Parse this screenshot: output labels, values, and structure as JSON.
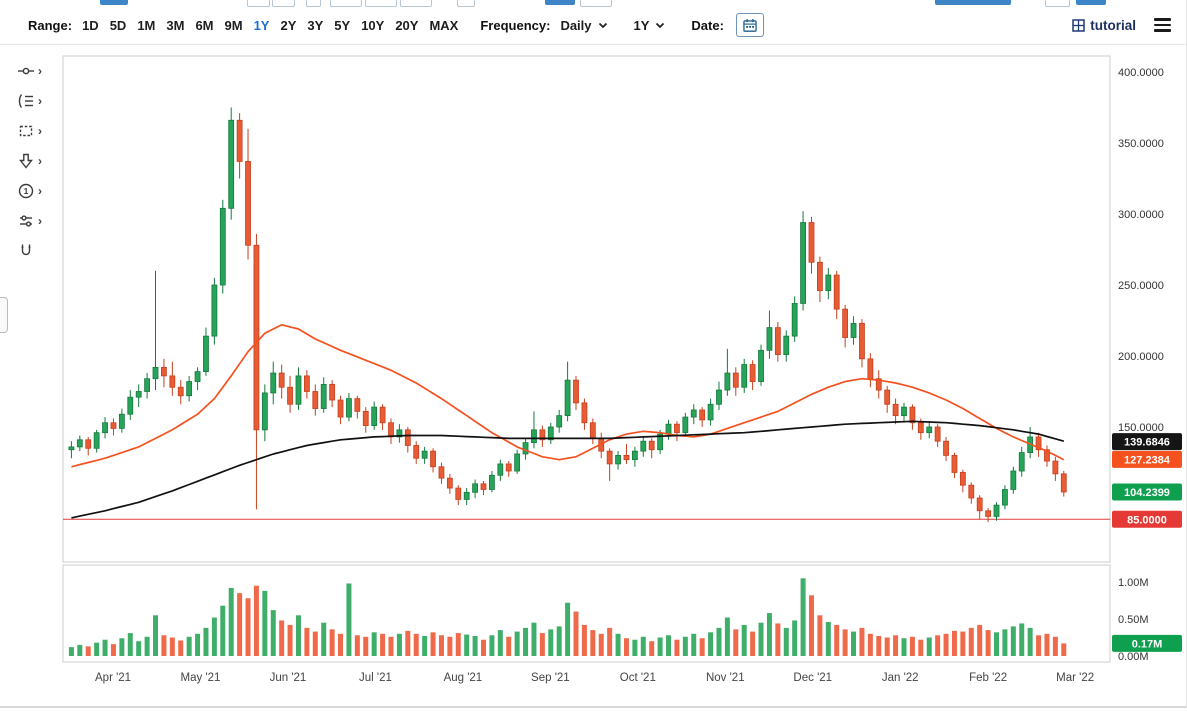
{
  "toolbar": {
    "range_label": "Range:",
    "range_options": [
      "1D",
      "5D",
      "1M",
      "3M",
      "6M",
      "9M",
      "1Y",
      "2Y",
      "3Y",
      "5Y",
      "10Y",
      "20Y",
      "MAX"
    ],
    "active_range": "1Y",
    "frequency_label": "Frequency:",
    "frequency_value": "Daily",
    "period_value": "1Y",
    "date_label": "Date:",
    "calendar_icon": "calendar-icon",
    "tutorial_icon": "grid-icon",
    "tutorial_label": "tutorial",
    "menu_icon": "hamburger-menu-icon",
    "accent_color": "#1a6fd4"
  },
  "tools": [
    {
      "icon": "trendline-tool-icon",
      "chevron": true
    },
    {
      "icon": "pattern-tool-icon",
      "chevron": true
    },
    {
      "icon": "shape-tool-icon",
      "chevron": true
    },
    {
      "icon": "arrow-tool-icon",
      "chevron": true
    },
    {
      "icon": "annotation-counter-tool-icon",
      "chevron": true
    },
    {
      "icon": "indicator-slider-tool-icon",
      "chevron": true
    },
    {
      "icon": "magnet-tool-icon",
      "chevron": false
    }
  ],
  "chart_data": {
    "type": "candlestick",
    "title": "",
    "ylim": [
      56,
      411
    ],
    "grid": false,
    "y_axis_ticks": [
      {
        "label": "400.0000",
        "value": 400
      },
      {
        "label": "350.0000",
        "value": 350
      },
      {
        "label": "300.0000",
        "value": 300
      },
      {
        "label": "250.0000",
        "value": 250
      },
      {
        "label": "200.0000",
        "value": 200
      },
      {
        "label": "150.0000",
        "value": 150
      }
    ],
    "volume_axis_ticks": [
      {
        "label": "1.00M",
        "value": 1.0
      },
      {
        "label": "0.50M",
        "value": 0.5
      },
      {
        "label": "0.00M",
        "value": 0.0
      }
    ],
    "x_axis_months": [
      {
        "label": "Apr '21",
        "i": 4.95
      },
      {
        "label": "May '21",
        "i": 15.35
      },
      {
        "label": "Jun '21",
        "i": 25.75
      },
      {
        "label": "Jul '21",
        "i": 36.15
      },
      {
        "label": "Aug '21",
        "i": 46.55
      },
      {
        "label": "Sep '21",
        "i": 56.95
      },
      {
        "label": "Oct '21",
        "i": 67.35
      },
      {
        "label": "Nov '21",
        "i": 77.75
      },
      {
        "label": "Dec '21",
        "i": 88.15
      },
      {
        "label": "Jan '22",
        "i": 98.55
      },
      {
        "label": "Feb '22",
        "i": 109.0
      },
      {
        "label": "Mar '22",
        "i": 119.35
      }
    ],
    "candles_ohlc": [
      [
        134,
        140,
        128,
        136
      ],
      [
        136,
        144,
        133,
        141
      ],
      [
        141,
        143,
        130,
        135
      ],
      [
        135,
        148,
        132,
        146
      ],
      [
        146,
        157,
        142,
        153
      ],
      [
        153,
        156,
        144,
        149
      ],
      [
        149,
        163,
        146,
        159
      ],
      [
        159,
        176,
        155,
        171
      ],
      [
        171,
        180,
        164,
        175
      ],
      [
        175,
        188,
        170,
        184
      ],
      [
        184,
        260,
        176,
        192
      ],
      [
        192,
        198,
        178,
        186
      ],
      [
        186,
        196,
        172,
        178
      ],
      [
        178,
        183,
        166,
        172
      ],
      [
        172,
        186,
        168,
        182
      ],
      [
        182,
        192,
        176,
        189
      ],
      [
        189,
        220,
        186,
        214
      ],
      [
        214,
        255,
        208,
        250
      ],
      [
        250,
        310,
        244,
        304
      ],
      [
        304,
        375,
        296,
        366
      ],
      [
        366,
        371,
        325,
        337
      ],
      [
        337,
        360,
        268,
        278
      ],
      [
        278,
        286,
        92,
        148
      ],
      [
        148,
        180,
        140,
        174
      ],
      [
        174,
        196,
        166,
        188
      ],
      [
        188,
        194,
        170,
        178
      ],
      [
        178,
        186,
        160,
        166
      ],
      [
        166,
        192,
        162,
        186
      ],
      [
        186,
        190,
        170,
        175
      ],
      [
        175,
        180,
        158,
        163
      ],
      [
        163,
        185,
        160,
        180
      ],
      [
        180,
        183,
        164,
        169
      ],
      [
        169,
        172,
        152,
        157
      ],
      [
        157,
        174,
        154,
        170
      ],
      [
        170,
        172,
        156,
        161
      ],
      [
        161,
        164,
        146,
        151
      ],
      [
        151,
        168,
        148,
        164
      ],
      [
        164,
        166,
        148,
        153
      ],
      [
        153,
        156,
        138,
        143
      ],
      [
        143,
        152,
        139,
        148
      ],
      [
        148,
        150,
        132,
        137
      ],
      [
        137,
        140,
        124,
        128
      ],
      [
        128,
        136,
        124,
        133
      ],
      [
        133,
        135,
        118,
        122
      ],
      [
        122,
        125,
        110,
        114
      ],
      [
        114,
        117,
        103,
        107
      ],
      [
        107,
        109,
        95,
        99
      ],
      [
        99,
        107,
        95,
        104
      ],
      [
        104,
        113,
        100,
        110
      ],
      [
        110,
        112,
        102,
        106
      ],
      [
        106,
        119,
        104,
        116
      ],
      [
        116,
        127,
        112,
        124
      ],
      [
        124,
        126,
        115,
        119
      ],
      [
        119,
        134,
        117,
        131
      ],
      [
        131,
        142,
        127,
        139
      ],
      [
        139,
        161,
        135,
        148
      ],
      [
        148,
        151,
        136,
        141
      ],
      [
        141,
        153,
        138,
        150
      ],
      [
        150,
        162,
        146,
        158
      ],
      [
        158,
        196,
        154,
        183
      ],
      [
        183,
        186,
        162,
        167
      ],
      [
        167,
        170,
        148,
        153
      ],
      [
        153,
        156,
        138,
        142
      ],
      [
        142,
        146,
        128,
        133
      ],
      [
        133,
        135,
        112,
        124
      ],
      [
        124,
        133,
        120,
        130
      ],
      [
        130,
        138,
        124,
        127
      ],
      [
        127,
        136,
        122,
        133
      ],
      [
        133,
        143,
        129,
        140
      ],
      [
        140,
        142,
        128,
        134
      ],
      [
        134,
        148,
        131,
        145
      ],
      [
        145,
        155,
        141,
        152
      ],
      [
        152,
        154,
        140,
        146
      ],
      [
        146,
        160,
        143,
        157
      ],
      [
        157,
        166,
        152,
        162
      ],
      [
        162,
        164,
        150,
        155
      ],
      [
        155,
        170,
        151,
        166
      ],
      [
        166,
        182,
        162,
        176
      ],
      [
        176,
        205,
        172,
        188
      ],
      [
        188,
        192,
        172,
        178
      ],
      [
        178,
        198,
        174,
        194
      ],
      [
        194,
        197,
        176,
        182
      ],
      [
        182,
        208,
        179,
        204
      ],
      [
        204,
        232,
        198,
        220
      ],
      [
        220,
        224,
        196,
        201
      ],
      [
        201,
        218,
        196,
        214
      ],
      [
        214,
        242,
        210,
        237
      ],
      [
        237,
        302,
        232,
        294
      ],
      [
        294,
        298,
        258,
        266
      ],
      [
        266,
        270,
        238,
        246
      ],
      [
        246,
        262,
        240,
        257
      ],
      [
        257,
        260,
        226,
        233
      ],
      [
        233,
        236,
        206,
        213
      ],
      [
        213,
        228,
        208,
        223
      ],
      [
        223,
        226,
        192,
        198
      ],
      [
        198,
        202,
        178,
        184
      ],
      [
        184,
        190,
        170,
        176
      ],
      [
        176,
        179,
        160,
        166
      ],
      [
        166,
        170,
        152,
        158
      ],
      [
        158,
        167,
        154,
        164
      ],
      [
        164,
        166,
        148,
        153
      ],
      [
        153,
        156,
        141,
        146
      ],
      [
        146,
        154,
        142,
        150
      ],
      [
        150,
        152,
        136,
        140
      ],
      [
        140,
        143,
        126,
        130
      ],
      [
        130,
        132,
        114,
        118
      ],
      [
        118,
        120,
        104,
        109
      ],
      [
        109,
        111,
        96,
        100
      ],
      [
        100,
        102,
        85,
        91
      ],
      [
        91,
        93,
        83,
        87
      ],
      [
        87,
        97,
        84,
        95
      ],
      [
        95,
        109,
        92,
        106
      ],
      [
        106,
        122,
        103,
        119
      ],
      [
        119,
        136,
        115,
        132
      ],
      [
        132,
        150,
        128,
        143
      ],
      [
        143,
        146,
        129,
        134
      ],
      [
        134,
        137,
        122,
        126
      ],
      [
        126,
        129,
        112,
        117
      ],
      [
        117,
        119,
        101,
        104.24
      ]
    ],
    "volumes_millions": [
      0.12,
      0.15,
      0.13,
      0.18,
      0.22,
      0.16,
      0.24,
      0.31,
      0.2,
      0.26,
      0.55,
      0.28,
      0.25,
      0.21,
      0.26,
      0.3,
      0.38,
      0.52,
      0.68,
      0.92,
      0.85,
      0.78,
      0.95,
      0.88,
      0.62,
      0.48,
      0.42,
      0.55,
      0.38,
      0.33,
      0.45,
      0.36,
      0.3,
      0.98,
      0.28,
      0.26,
      0.32,
      0.3,
      0.26,
      0.3,
      0.34,
      0.3,
      0.27,
      0.32,
      0.28,
      0.26,
      0.31,
      0.29,
      0.27,
      0.22,
      0.28,
      0.35,
      0.26,
      0.33,
      0.38,
      0.45,
      0.31,
      0.36,
      0.4,
      0.72,
      0.6,
      0.42,
      0.35,
      0.3,
      0.38,
      0.3,
      0.24,
      0.22,
      0.26,
      0.2,
      0.25,
      0.28,
      0.22,
      0.26,
      0.3,
      0.24,
      0.32,
      0.38,
      0.52,
      0.36,
      0.42,
      0.33,
      0.45,
      0.58,
      0.44,
      0.38,
      0.48,
      1.05,
      0.82,
      0.55,
      0.46,
      0.42,
      0.36,
      0.33,
      0.38,
      0.3,
      0.27,
      0.25,
      0.28,
      0.24,
      0.26,
      0.22,
      0.25,
      0.28,
      0.3,
      0.34,
      0.33,
      0.38,
      0.42,
      0.35,
      0.32,
      0.36,
      0.4,
      0.44,
      0.38,
      0.28,
      0.3,
      0.26,
      0.17
    ],
    "series": [
      {
        "name": "ma-fast-red",
        "color": "#f4511e",
        "anchors": [
          [
            0,
            122
          ],
          [
            4,
            128
          ],
          [
            8,
            136
          ],
          [
            12,
            148
          ],
          [
            15,
            159
          ],
          [
            17,
            170
          ],
          [
            19,
            186
          ],
          [
            21,
            203
          ],
          [
            23,
            216
          ],
          [
            25,
            222
          ],
          [
            27,
            219
          ],
          [
            29,
            212
          ],
          [
            32,
            204
          ],
          [
            35,
            197
          ],
          [
            38,
            190
          ],
          [
            41,
            181
          ],
          [
            44,
            170
          ],
          [
            47,
            158
          ],
          [
            50,
            146
          ],
          [
            53,
            136
          ],
          [
            56,
            129
          ],
          [
            58,
            127
          ],
          [
            60,
            129
          ],
          [
            62,
            135
          ],
          [
            64,
            141
          ],
          [
            66,
            145
          ],
          [
            68,
            147
          ],
          [
            70,
            146
          ],
          [
            72,
            144
          ],
          [
            74,
            143
          ],
          [
            76,
            145
          ],
          [
            78,
            149
          ],
          [
            80,
            153
          ],
          [
            82,
            157
          ],
          [
            84,
            161
          ],
          [
            86,
            167
          ],
          [
            88,
            173
          ],
          [
            90,
            178
          ],
          [
            92,
            182
          ],
          [
            94,
            184
          ],
          [
            96,
            183
          ],
          [
            98,
            181
          ],
          [
            100,
            178
          ],
          [
            102,
            174
          ],
          [
            104,
            169
          ],
          [
            106,
            163
          ],
          [
            108,
            156
          ],
          [
            110,
            149
          ],
          [
            112,
            143
          ],
          [
            114,
            138
          ],
          [
            116,
            133
          ],
          [
            118,
            127
          ]
        ]
      },
      {
        "name": "ma-slow-black",
        "color": "#111111",
        "anchors": [
          [
            0,
            86
          ],
          [
            4,
            91
          ],
          [
            8,
            97
          ],
          [
            12,
            105
          ],
          [
            16,
            114
          ],
          [
            20,
            123
          ],
          [
            24,
            131
          ],
          [
            28,
            137
          ],
          [
            32,
            141
          ],
          [
            36,
            143
          ],
          [
            40,
            144
          ],
          [
            44,
            144
          ],
          [
            48,
            143
          ],
          [
            52,
            142
          ],
          [
            56,
            142
          ],
          [
            60,
            142
          ],
          [
            64,
            142
          ],
          [
            68,
            143
          ],
          [
            72,
            144
          ],
          [
            76,
            145
          ],
          [
            80,
            146
          ],
          [
            84,
            148
          ],
          [
            88,
            150
          ],
          [
            92,
            152
          ],
          [
            96,
            153
          ],
          [
            100,
            154
          ],
          [
            104,
            153
          ],
          [
            108,
            151
          ],
          [
            112,
            148
          ],
          [
            115,
            145
          ],
          [
            118,
            140
          ]
        ]
      }
    ],
    "support_line": {
      "value": 85.0,
      "color": "#e23a3a"
    },
    "price_badges": [
      {
        "text": "139.6846",
        "value": 139.6846,
        "bg": "#151515"
      },
      {
        "text": "127.2384",
        "value": 127.2384,
        "bg": "#f4511e"
      },
      {
        "text": "104.2399",
        "value": 104.2399,
        "bg": "#0ea04e"
      },
      {
        "text": "85.0000",
        "value": 85.0,
        "bg": "#e53935"
      }
    ],
    "volume_badge": {
      "text": "0.17M",
      "value": 0.17,
      "bg": "#0ea04e"
    },
    "colors": {
      "up": "#157a3d",
      "up_fill": "#27a35a",
      "down": "#c6401f",
      "down_fill": "#e85c35",
      "up_vol": "#3fae6a",
      "down_vol": "#ef6a4a",
      "axis_text": "#333333",
      "pane_border": "#cccccc"
    }
  }
}
